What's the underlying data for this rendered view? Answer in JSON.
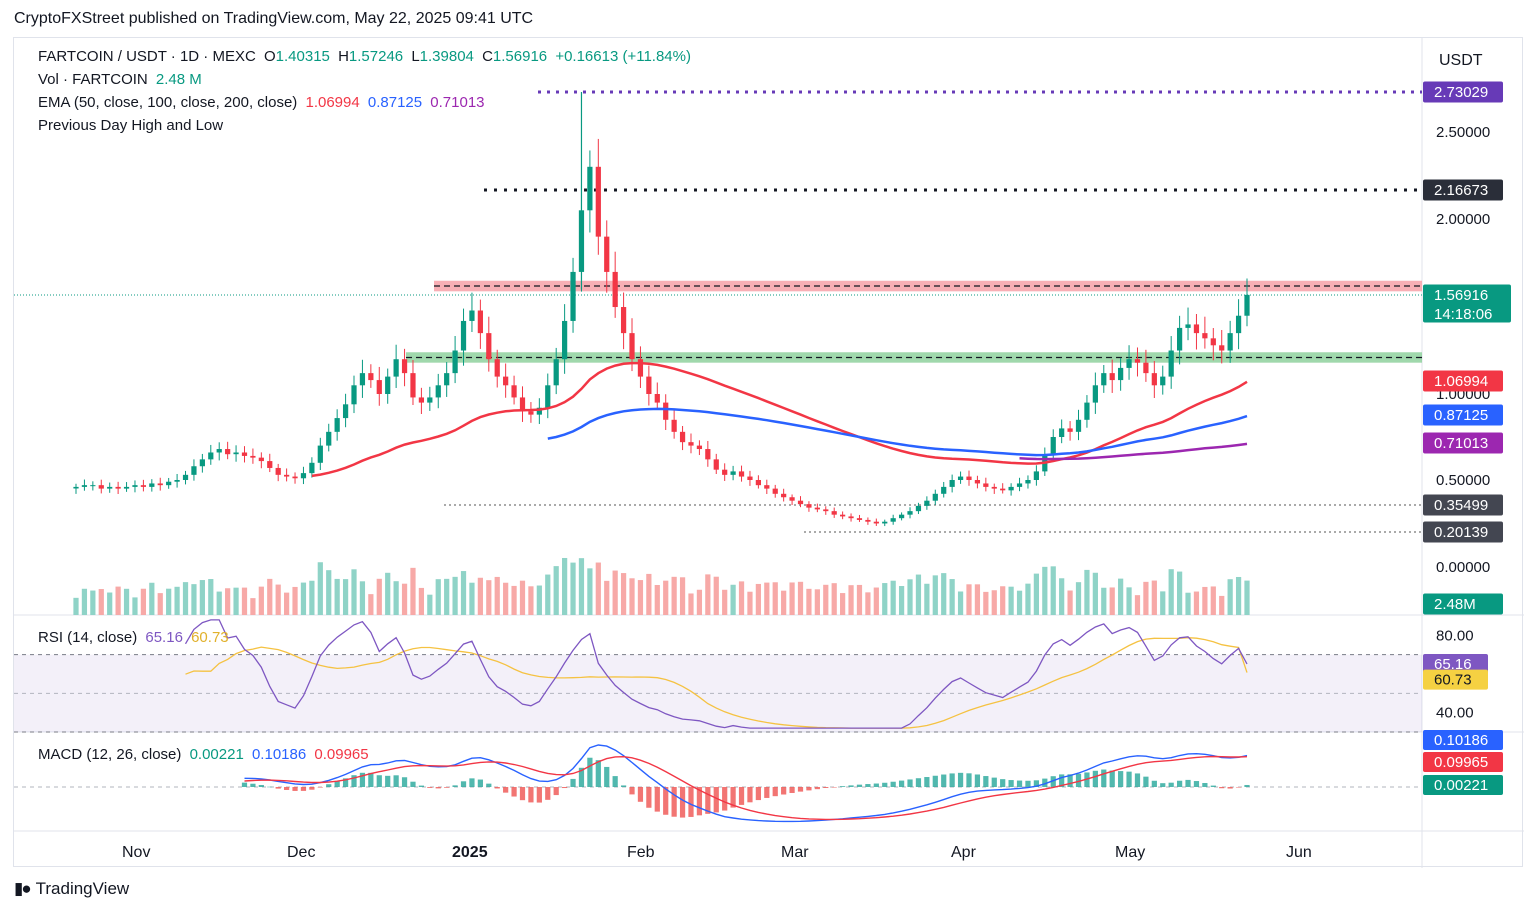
{
  "publisher": "CryptoFXStreet published on TradingView.com, May 22, 2025 09:41 UTC",
  "footer": {
    "logo_icon": "tradingview-logo-icon",
    "brand": "TradingView"
  },
  "legend": {
    "symbol": "FARTCOIN / USDT · 1D · MEXC",
    "o_label": "O",
    "o": "1.40315",
    "h_label": "H",
    "h": "1.57246",
    "l_label": "L",
    "l": "1.39804",
    "c_label": "C",
    "c": "1.56916",
    "change": "+0.16613 (+11.84%)",
    "vol_label": "Vol · FARTCOIN",
    "vol": "2.48 M",
    "ema_label": "EMA (50, close, 100, close, 200, close)",
    "ema50": "1.06994",
    "ema100": "0.87125",
    "ema200": "0.71013",
    "pdhl_label": "Previous Day High and Low",
    "rsi_label": "RSI (14, close)",
    "rsi": "65.16",
    "rsi_ma": "60.73",
    "macd_label": "MACD (12, 26, close)",
    "macd_hist": "0.00221",
    "macd": "0.10186",
    "macd_signal": "0.09965"
  },
  "colors": {
    "up": "#089981",
    "down": "#f23645",
    "ema50": "#f23645",
    "ema100": "#2962ff",
    "ema200": "#9c27b0",
    "rsi": "#7e57c2",
    "rsi_ma": "#f5c242",
    "resistance": "#f7a1a8",
    "support": "#8fd19e"
  },
  "chart_data": [
    {
      "type": "candlestick",
      "title": "FARTCOIN / USDT · 1D · MEXC",
      "currency": "USDT",
      "x_ticks": [
        "Nov",
        "Dec",
        "2025",
        "Feb",
        "Mar",
        "Apr",
        "May",
        "Jun"
      ],
      "y_ticks": [
        "2.50000",
        "2.00000",
        "1.00000",
        "0.50000",
        "0.00000"
      ],
      "price_labels": [
        {
          "label": "2.73029",
          "value": 2.73029,
          "kind": "prev-day-high"
        },
        {
          "label": "2.16673",
          "value": 2.16673,
          "kind": "level"
        },
        {
          "label": "1.56916",
          "value": 1.56916,
          "kind": "last-price",
          "countdown": "14:18:06"
        },
        {
          "label": "1.06994",
          "value": 1.06994,
          "kind": "ema50"
        },
        {
          "label": "0.87125",
          "value": 0.87125,
          "kind": "ema100"
        },
        {
          "label": "0.71013",
          "value": 0.71013,
          "kind": "ema200"
        },
        {
          "label": "0.35499",
          "value": 0.35499,
          "kind": "level"
        },
        {
          "label": "0.20139",
          "value": 0.20139,
          "kind": "level"
        },
        {
          "label": "2.48M",
          "value": 2.48,
          "kind": "volume"
        }
      ],
      "zones": [
        {
          "name": "resistance",
          "from": 1.59,
          "to": 1.65
        },
        {
          "name": "support",
          "from": 1.18,
          "to": 1.24
        }
      ],
      "close_series": [
        0.46,
        0.47,
        0.47,
        0.45,
        0.46,
        0.45,
        0.46,
        0.47,
        0.46,
        0.48,
        0.47,
        0.49,
        0.5,
        0.53,
        0.58,
        0.62,
        0.66,
        0.68,
        0.65,
        0.66,
        0.64,
        0.63,
        0.61,
        0.57,
        0.53,
        0.52,
        0.51,
        0.54,
        0.6,
        0.7,
        0.78,
        0.86,
        0.94,
        1.05,
        1.12,
        1.08,
        1.0,
        1.1,
        1.2,
        1.12,
        0.98,
        0.95,
        0.98,
        1.05,
        1.12,
        1.25,
        1.42,
        1.48,
        1.35,
        1.2,
        1.1,
        1.05,
        0.98,
        0.9,
        0.88,
        0.92,
        1.05,
        1.2,
        1.42,
        1.7,
        2.05,
        2.3,
        1.9,
        1.7,
        1.5,
        1.35,
        1.2,
        1.1,
        1.0,
        0.95,
        0.85,
        0.78,
        0.72,
        0.7,
        0.68,
        0.62,
        0.56,
        0.53,
        0.55,
        0.52,
        0.5,
        0.47,
        0.45,
        0.42,
        0.4,
        0.38,
        0.36,
        0.34,
        0.33,
        0.32,
        0.3,
        0.29,
        0.28,
        0.27,
        0.26,
        0.25,
        0.26,
        0.28,
        0.3,
        0.32,
        0.35,
        0.38,
        0.42,
        0.46,
        0.5,
        0.52,
        0.5,
        0.48,
        0.46,
        0.45,
        0.44,
        0.46,
        0.48,
        0.5,
        0.55,
        0.65,
        0.75,
        0.8,
        0.78,
        0.85,
        0.95,
        1.05,
        1.12,
        1.08,
        1.15,
        1.2,
        1.18,
        1.12,
        1.05,
        1.1,
        1.25,
        1.38,
        1.4,
        1.35,
        1.32,
        1.28,
        1.25,
        1.35,
        1.45,
        1.57
      ],
      "ema50": 1.06994,
      "ema100": 0.87125,
      "ema200": 0.71013
    },
    {
      "type": "line",
      "title": "RSI (14, close)",
      "y_ticks": [
        "80.00",
        "40.00"
      ],
      "series": [
        {
          "name": "RSI",
          "last": 65.16
        },
        {
          "name": "RSI MA",
          "last": 60.73
        }
      ],
      "value_labels": [
        "65.16",
        "60.73"
      ],
      "ylim": [
        30,
        90
      ],
      "bands": [
        70,
        30
      ]
    },
    {
      "type": "line",
      "title": "MACD (12, 26, close)",
      "series": [
        {
          "name": "MACD",
          "last": 0.10186
        },
        {
          "name": "Signal",
          "last": 0.09965
        },
        {
          "name": "Histogram",
          "last": 0.00221
        }
      ],
      "value_labels": [
        "0.10186",
        "0.09965",
        "0.00221"
      ]
    }
  ]
}
